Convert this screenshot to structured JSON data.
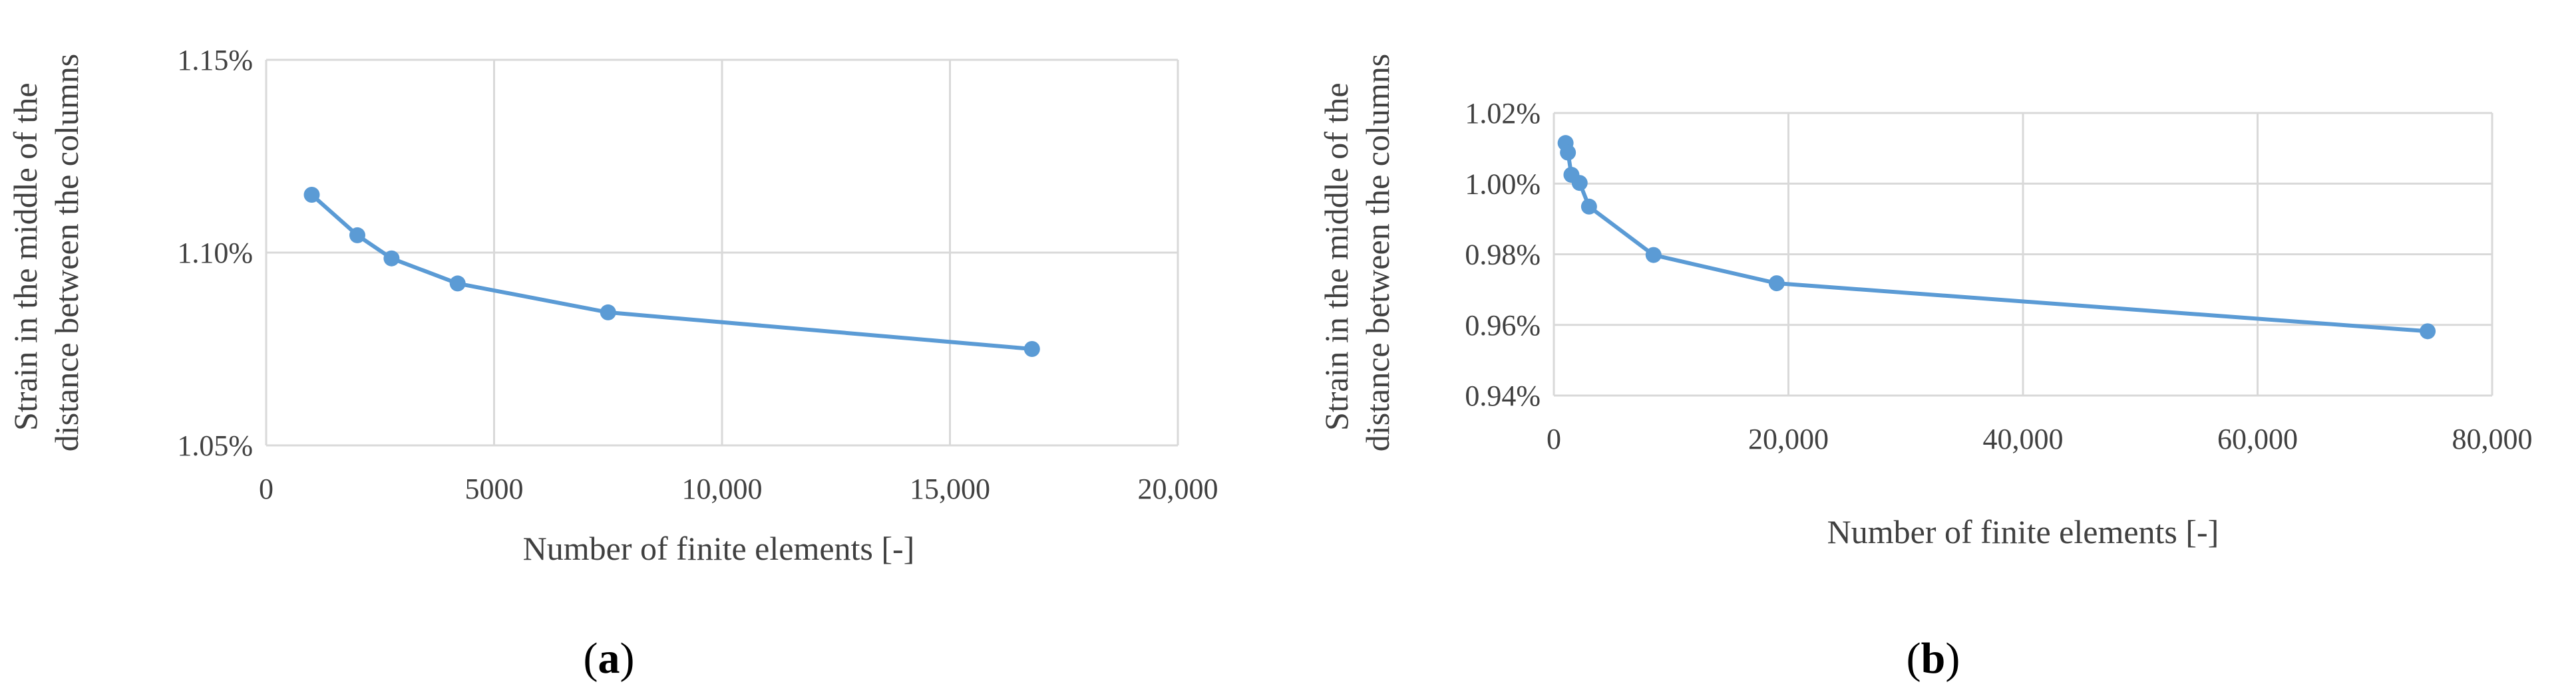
{
  "style": {
    "series_color": "#5B9BD5",
    "grid_color": "#D9D9D9",
    "text_color": "#404040"
  },
  "chart_data": [
    {
      "type": "line",
      "panel_label": "a",
      "xlabel": "Number of finite elements [-]",
      "ylabel_lines": [
        "Strain in the middle of the",
        "distance between the columns"
      ],
      "xlim": [
        0,
        20000
      ],
      "ylim": [
        1.05,
        1.15
      ],
      "x_ticks": [
        0,
        5000,
        10000,
        15000,
        20000
      ],
      "x_tick_labels": [
        "0",
        "5000",
        "10,000",
        "15,000",
        "20,000"
      ],
      "y_ticks": [
        1.05,
        1.1,
        1.15
      ],
      "y_tick_labels": [
        "1.05%",
        "1.10%",
        "1.15%"
      ],
      "grid": true,
      "series": [
        {
          "x": [
            1000,
            2000,
            2750,
            4200,
            7500,
            16800
          ],
          "y": [
            1.115,
            1.1045,
            1.0985,
            1.092,
            1.0845,
            1.075
          ]
        }
      ]
    },
    {
      "type": "line",
      "panel_label": "b",
      "xlabel": "Number of finite elements [-]",
      "ylabel_lines": [
        "Strain in the middle of the",
        "distance between the columns"
      ],
      "xlim": [
        0,
        80000
      ],
      "ylim": [
        0.94,
        1.02
      ],
      "x_ticks": [
        0,
        20000,
        40000,
        60000,
        80000
      ],
      "x_tick_labels": [
        "0",
        "20,000",
        "40,000",
        "60,000",
        "80,000"
      ],
      "y_ticks": [
        0.94,
        0.96,
        0.98,
        1.0,
        1.02
      ],
      "y_tick_labels": [
        "0.94%",
        "0.96%",
        "0.98%",
        "1.00%",
        "1.02%"
      ],
      "grid": true,
      "series": [
        {
          "x": [
            1000,
            1200,
            1500,
            2200,
            3000,
            8500,
            19000,
            74500
          ],
          "y": [
            1.0115,
            1.0088,
            1.0025,
            1.0002,
            0.9935,
            0.9798,
            0.9718,
            0.9582
          ]
        }
      ]
    }
  ]
}
